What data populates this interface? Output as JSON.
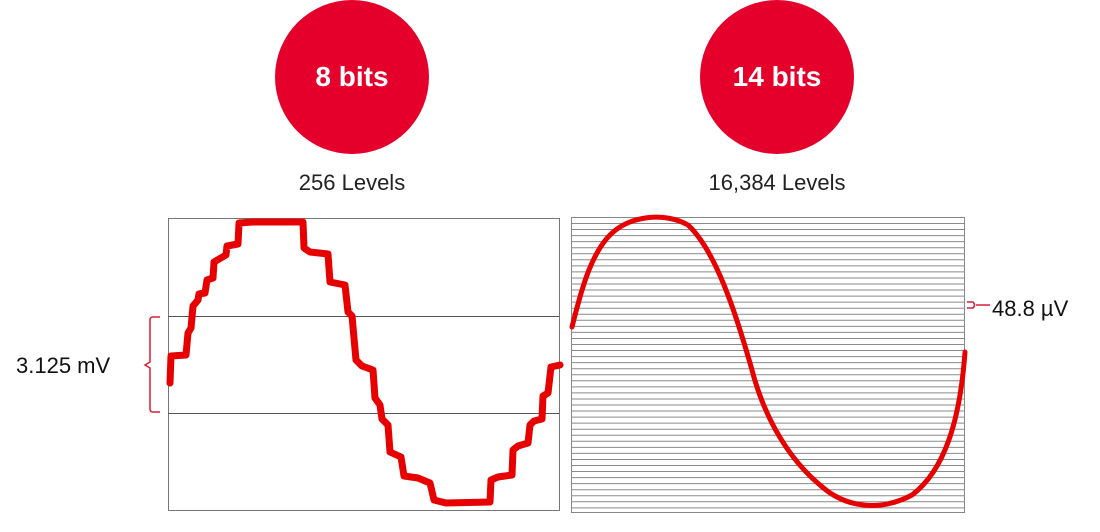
{
  "accent_color": "#e4002b",
  "wave_color": "#e60000",
  "left": {
    "bits": "8 bits",
    "levels": "256 Levels",
    "step_label": "3.125 mV"
  },
  "right": {
    "bits": "14 bits",
    "levels": "16,384 Levels",
    "step_label": "48.8 µV"
  }
}
